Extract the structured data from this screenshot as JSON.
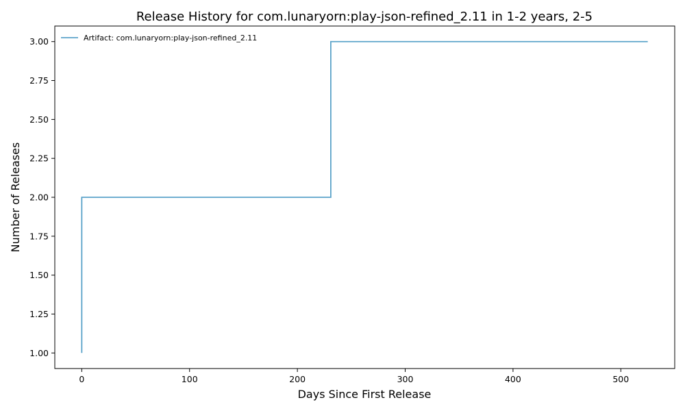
{
  "chart_data": {
    "type": "line",
    "step": true,
    "title": "Release History for com.lunaryorn:play-json-refined_2.11 in 1-2 years, 2-5",
    "xlabel": "Days Since First Release",
    "ylabel": "Number of Releases",
    "xlim": [
      -25,
      550
    ],
    "ylim": [
      0.9,
      3.1
    ],
    "x_ticks": [
      0,
      100,
      200,
      300,
      400,
      500
    ],
    "y_ticks": [
      1.0,
      1.25,
      1.5,
      1.75,
      2.0,
      2.25,
      2.5,
      2.75,
      3.0
    ],
    "x_tick_labels": [
      "0",
      "100",
      "200",
      "300",
      "400",
      "500"
    ],
    "y_tick_labels": [
      "1.00",
      "1.25",
      "1.50",
      "1.75",
      "2.00",
      "2.25",
      "2.50",
      "2.75",
      "3.00"
    ],
    "legend_position": "top-left",
    "grid": false,
    "series": [
      {
        "name": "Artifact: com.lunaryorn:play-json-refined_2.11",
        "color": "#5ba3c9",
        "x": [
          0,
          0,
          231,
          525
        ],
        "y": [
          1,
          2,
          3,
          3
        ]
      }
    ]
  }
}
